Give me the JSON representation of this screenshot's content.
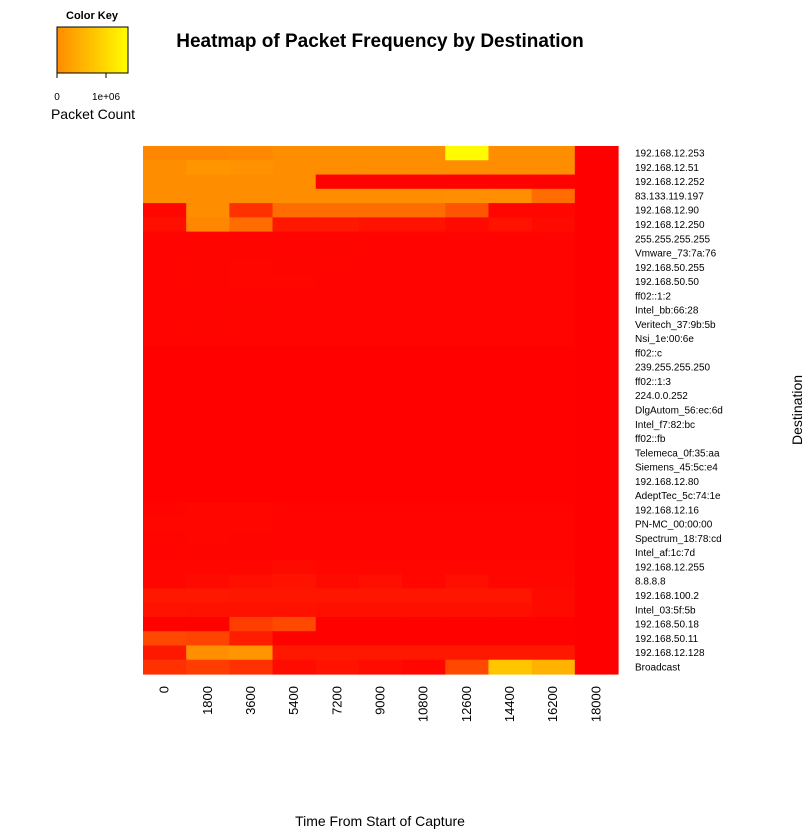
{
  "chart_data": {
    "type": "heatmap",
    "title": "Heatmap of Packet Frequency by Destination",
    "xlabel": "Time From Start of Capture",
    "ylabel": "Destination",
    "colorkey": {
      "title": "Color Key",
      "label": "Packet Count",
      "ticks": [
        "0",
        "1e+06"
      ],
      "tick_values": [
        0,
        1000000
      ],
      "range": [
        0,
        1600000
      ],
      "colors": [
        "#FF0000",
        "#FF8C00",
        "#FFD700",
        "#FFFF00"
      ]
    },
    "columns": [
      "0",
      "1800",
      "3600",
      "5400",
      "7200",
      "9000",
      "10800",
      "12600",
      "14400",
      "16200",
      "18000"
    ],
    "rows": [
      "192.168.12.253",
      "192.168.12.51",
      "192.168.12.252",
      "83.133.119.197",
      "192.168.12.90",
      "192.168.12.250",
      "255.255.255.255",
      "Vmware_73:7a:76",
      "192.168.50.255",
      "192.168.50.50",
      "ff02::1:2",
      "Intel_bb:66:28",
      "Veritech_37:9b:5b",
      "Nsi_1e:00:6e",
      "ff02::c",
      "239.255.255.250",
      "ff02::1:3",
      "224.0.0.252",
      "DlgAutom_56:ec:6d",
      "Intel_f7:82:bc",
      "ff02::fb",
      "Telemeca_0f:35:aa",
      "Siemens_45:5c:e4",
      "192.168.12.80",
      "AdeptTec_5c:74:1e",
      "192.168.12.16",
      "PN-MC_00:00:00",
      "Spectrum_18:78:cd",
      "Intel_af:1c:7d",
      "192.168.12.255",
      "8.8.8.8",
      "192.168.100.2",
      "Intel_03:5f:5b",
      "192.168.50.18",
      "192.168.50.11",
      "192.168.12.128",
      "Broadcast"
    ],
    "values": [
      [
        550000,
        550000,
        560000,
        580000,
        580000,
        580000,
        580000,
        1550000,
        580000,
        580000,
        0
      ],
      [
        580000,
        650000,
        620000,
        580000,
        580000,
        580000,
        580000,
        580000,
        580000,
        580000,
        0
      ],
      [
        580000,
        580000,
        580000,
        580000,
        10000,
        10000,
        10000,
        10000,
        10000,
        10000,
        0
      ],
      [
        580000,
        580000,
        580000,
        580000,
        580000,
        580000,
        580000,
        600000,
        600000,
        450000,
        0
      ],
      [
        30000,
        580000,
        200000,
        450000,
        450000,
        450000,
        450000,
        350000,
        30000,
        30000,
        0
      ],
      [
        60000,
        550000,
        450000,
        100000,
        100000,
        80000,
        80000,
        40000,
        80000,
        40000,
        0
      ],
      [
        15000,
        15000,
        15000,
        15000,
        15000,
        15000,
        15000,
        15000,
        15000,
        15000,
        0
      ],
      [
        15000,
        20000,
        20000,
        15000,
        20000,
        15000,
        15000,
        15000,
        15000,
        15000,
        0
      ],
      [
        15000,
        20000,
        25000,
        20000,
        15000,
        15000,
        15000,
        15000,
        15000,
        15000,
        0
      ],
      [
        15000,
        20000,
        25000,
        25000,
        15000,
        15000,
        15000,
        15000,
        15000,
        15000,
        0
      ],
      [
        15000,
        15000,
        15000,
        15000,
        15000,
        15000,
        15000,
        15000,
        15000,
        15000,
        0
      ],
      [
        15000,
        15000,
        20000,
        15000,
        15000,
        15000,
        15000,
        15000,
        15000,
        15000,
        0
      ],
      [
        15000,
        20000,
        15000,
        15000,
        15000,
        15000,
        15000,
        15000,
        15000,
        15000,
        0
      ],
      [
        15000,
        15000,
        15000,
        15000,
        15000,
        15000,
        15000,
        15000,
        15000,
        15000,
        0
      ],
      [
        10000,
        10000,
        10000,
        10000,
        10000,
        10000,
        10000,
        10000,
        10000,
        10000,
        0
      ],
      [
        10000,
        10000,
        10000,
        10000,
        10000,
        10000,
        10000,
        10000,
        10000,
        10000,
        0
      ],
      [
        10000,
        10000,
        10000,
        10000,
        10000,
        10000,
        10000,
        10000,
        10000,
        10000,
        0
      ],
      [
        10000,
        10000,
        10000,
        10000,
        10000,
        10000,
        10000,
        10000,
        10000,
        10000,
        0
      ],
      [
        10000,
        10000,
        10000,
        10000,
        10000,
        10000,
        10000,
        10000,
        10000,
        10000,
        0
      ],
      [
        10000,
        10000,
        10000,
        10000,
        10000,
        10000,
        10000,
        10000,
        10000,
        10000,
        0
      ],
      [
        10000,
        10000,
        10000,
        10000,
        10000,
        10000,
        10000,
        10000,
        10000,
        10000,
        0
      ],
      [
        10000,
        10000,
        10000,
        10000,
        10000,
        10000,
        10000,
        10000,
        10000,
        10000,
        0
      ],
      [
        10000,
        10000,
        10000,
        10000,
        10000,
        10000,
        10000,
        10000,
        10000,
        10000,
        0
      ],
      [
        10000,
        10000,
        10000,
        10000,
        10000,
        10000,
        10000,
        10000,
        10000,
        10000,
        0
      ],
      [
        10000,
        10000,
        10000,
        10000,
        10000,
        10000,
        10000,
        10000,
        10000,
        10000,
        0
      ],
      [
        15000,
        25000,
        30000,
        15000,
        15000,
        15000,
        15000,
        15000,
        15000,
        15000,
        0
      ],
      [
        30000,
        25000,
        30000,
        15000,
        15000,
        15000,
        15000,
        15000,
        15000,
        15000,
        0
      ],
      [
        15000,
        25000,
        20000,
        15000,
        15000,
        15000,
        15000,
        15000,
        15000,
        15000,
        0
      ],
      [
        15000,
        20000,
        20000,
        15000,
        15000,
        15000,
        15000,
        15000,
        15000,
        15000,
        0
      ],
      [
        25000,
        30000,
        30000,
        40000,
        25000,
        25000,
        25000,
        25000,
        25000,
        25000,
        0
      ],
      [
        30000,
        40000,
        60000,
        80000,
        40000,
        60000,
        30000,
        60000,
        30000,
        30000,
        0
      ],
      [
        100000,
        100000,
        90000,
        90000,
        90000,
        90000,
        90000,
        90000,
        90000,
        40000,
        0
      ],
      [
        80000,
        70000,
        70000,
        70000,
        60000,
        60000,
        60000,
        60000,
        60000,
        40000,
        0
      ],
      [
        10000,
        10000,
        250000,
        300000,
        10000,
        10000,
        10000,
        10000,
        10000,
        10000,
        0
      ],
      [
        300000,
        280000,
        120000,
        10000,
        10000,
        10000,
        10000,
        10000,
        10000,
        10000,
        0
      ],
      [
        100000,
        600000,
        650000,
        100000,
        100000,
        100000,
        100000,
        100000,
        100000,
        100000,
        0
      ],
      [
        200000,
        250000,
        200000,
        50000,
        80000,
        50000,
        30000,
        300000,
        1000000,
        850000,
        0
      ]
    ]
  }
}
